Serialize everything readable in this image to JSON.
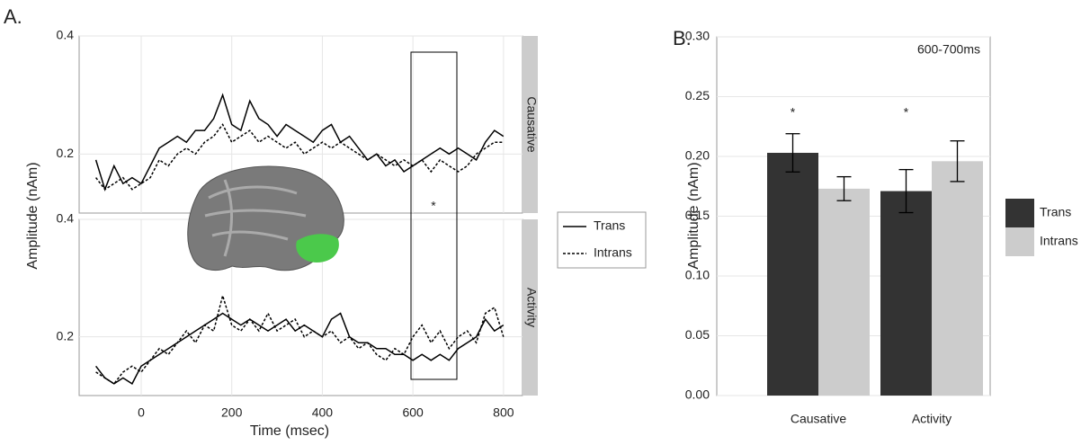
{
  "chart_data": [
    {
      "type": "line",
      "panel_label": "A.",
      "facet": "Causative",
      "ylabel": "Amplitude (nAm)",
      "annotation": "*",
      "x": [
        -100,
        -80,
        -60,
        -40,
        -20,
        0,
        20,
        40,
        60,
        80,
        100,
        120,
        140,
        160,
        180,
        200,
        220,
        240,
        260,
        280,
        300,
        320,
        340,
        360,
        380,
        400,
        420,
        440,
        460,
        480,
        500,
        520,
        540,
        560,
        580,
        600,
        620,
        640,
        660,
        680,
        700,
        720,
        740,
        760,
        780,
        800
      ],
      "series": [
        {
          "name": "Trans",
          "color": "#000000",
          "linestyle": "solid",
          "values": [
            0.19,
            0.14,
            0.18,
            0.15,
            0.16,
            0.15,
            0.18,
            0.21,
            0.22,
            0.23,
            0.22,
            0.24,
            0.24,
            0.26,
            0.3,
            0.25,
            0.24,
            0.29,
            0.26,
            0.25,
            0.23,
            0.25,
            0.24,
            0.23,
            0.22,
            0.24,
            0.25,
            0.22,
            0.23,
            0.21,
            0.19,
            0.2,
            0.18,
            0.19,
            0.17,
            0.18,
            0.19,
            0.2,
            0.21,
            0.2,
            0.21,
            0.2,
            0.19,
            0.22,
            0.24,
            0.23
          ]
        },
        {
          "name": "Intrans",
          "color": "#000000",
          "linestyle": "dotted",
          "values": [
            0.16,
            0.14,
            0.15,
            0.16,
            0.14,
            0.15,
            0.16,
            0.19,
            0.18,
            0.2,
            0.21,
            0.2,
            0.22,
            0.23,
            0.25,
            0.22,
            0.23,
            0.24,
            0.22,
            0.23,
            0.22,
            0.21,
            0.22,
            0.2,
            0.21,
            0.22,
            0.21,
            0.22,
            0.21,
            0.2,
            0.19,
            0.2,
            0.19,
            0.18,
            0.19,
            0.18,
            0.19,
            0.17,
            0.19,
            0.18,
            0.17,
            0.18,
            0.2,
            0.21,
            0.22,
            0.22
          ]
        }
      ],
      "xlim": [
        -137,
        842
      ],
      "xticks": [
        0,
        200,
        400,
        600,
        800
      ],
      "ylim": [
        0.1,
        0.4
      ],
      "yticks": [
        0.2,
        0.4
      ],
      "grid": true
    },
    {
      "type": "line",
      "facet": "Activity",
      "xlabel": "Time (msec)",
      "x": [
        -100,
        -80,
        -60,
        -40,
        -20,
        0,
        20,
        40,
        60,
        80,
        100,
        120,
        140,
        160,
        180,
        200,
        220,
        240,
        260,
        280,
        300,
        320,
        340,
        360,
        380,
        400,
        420,
        440,
        460,
        480,
        500,
        520,
        540,
        560,
        580,
        600,
        620,
        640,
        660,
        680,
        700,
        720,
        740,
        760,
        780,
        800
      ],
      "series": [
        {
          "color": "#000000",
          "linestyle": "solid",
          "values": [
            0.15,
            0.13,
            0.12,
            0.13,
            0.12,
            0.15,
            0.16,
            0.17,
            0.18,
            0.19,
            0.2,
            0.21,
            0.22,
            0.23,
            0.24,
            0.23,
            0.22,
            0.23,
            0.22,
            0.21,
            0.22,
            0.23,
            0.21,
            0.22,
            0.21,
            0.2,
            0.23,
            0.24,
            0.2,
            0.19,
            0.19,
            0.18,
            0.18,
            0.17,
            0.17,
            0.16,
            0.17,
            0.16,
            0.17,
            0.16,
            0.18,
            0.19,
            0.2,
            0.23,
            0.21,
            0.22
          ]
        },
        {
          "color": "#000000",
          "linestyle": "dotted",
          "values": [
            0.14,
            0.13,
            0.12,
            0.14,
            0.15,
            0.14,
            0.16,
            0.18,
            0.17,
            0.19,
            0.21,
            0.19,
            0.22,
            0.21,
            0.27,
            0.22,
            0.21,
            0.23,
            0.21,
            0.24,
            0.21,
            0.22,
            0.23,
            0.2,
            0.21,
            0.2,
            0.21,
            0.19,
            0.2,
            0.18,
            0.19,
            0.17,
            0.16,
            0.18,
            0.17,
            0.2,
            0.22,
            0.19,
            0.21,
            0.18,
            0.2,
            0.21,
            0.19,
            0.24,
            0.25,
            0.2
          ]
        }
      ],
      "xlim": [
        -137,
        842
      ],
      "xticks": [
        0,
        200,
        400,
        600,
        800
      ],
      "ylim": [
        0.1,
        0.4
      ],
      "yticks": [
        0.2,
        0.4
      ],
      "grid": true
    },
    {
      "type": "bar",
      "panel_label": "B.",
      "ylabel": "Amplitude (nAm)",
      "annotation": "600-700ms",
      "markers": [
        "*",
        "*"
      ],
      "categories": [
        "Causative",
        "Activity"
      ],
      "series": [
        {
          "name": "Trans",
          "color": "#333333",
          "values": [
            0.203,
            0.171
          ],
          "errors": [
            0.016,
            0.018
          ]
        },
        {
          "name": "Intrans",
          "color": "#cccccc",
          "values": [
            0.173,
            0.196
          ],
          "errors": [
            0.01,
            0.017
          ]
        }
      ],
      "ylim": [
        0,
        0.3
      ],
      "yticks": [
        {
          "value": 0,
          "label": "0.00"
        },
        {
          "value": 0.05,
          "label": "0.05"
        },
        {
          "value": 0.1,
          "label": "0.10"
        },
        {
          "value": 0.15,
          "label": "0.15"
        },
        {
          "value": 0.2,
          "label": "0.20"
        },
        {
          "value": 0.25,
          "label": "0.25"
        },
        {
          "value": 0.3,
          "label": "0.30"
        }
      ],
      "grid": true
    }
  ]
}
